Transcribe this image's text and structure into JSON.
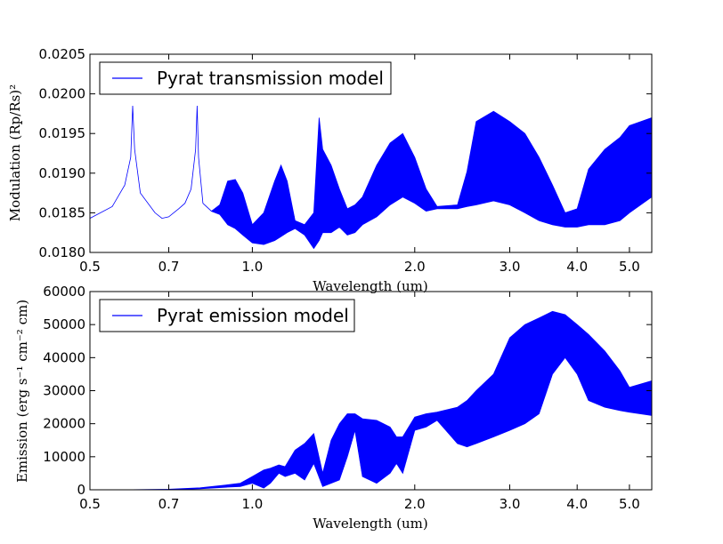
{
  "chart_data": [
    {
      "type": "line",
      "xscale": "log",
      "xlim": [
        0.5,
        5.5
      ],
      "ylim": [
        0.018,
        0.0205
      ],
      "xticks": [
        0.5,
        0.7,
        1.0,
        2.0,
        3.0,
        4.0,
        5.0
      ],
      "xtick_labels": [
        "0.5",
        "0.7",
        "1.0",
        "2.0",
        "3.0",
        "4.0",
        "5.0"
      ],
      "yticks": [
        0.018,
        0.0185,
        0.019,
        0.0195,
        0.02,
        0.0205
      ],
      "ytick_labels": [
        "0.0180",
        "0.0185",
        "0.0190",
        "0.0195",
        "0.0200",
        "0.0205"
      ],
      "xlabel": "Wavelength  (um)",
      "ylabel": "Modulation  (Rp/Rs)²",
      "legend": {
        "location": "upper-left",
        "entries": [
          "Pyrat transmission model"
        ]
      },
      "line_color": "#0000ff",
      "series": [
        {
          "name": "Pyrat transmission model",
          "envelope": {
            "x": [
              0.5,
              0.55,
              0.58,
              0.595,
              0.6,
              0.605,
              0.62,
              0.66,
              0.68,
              0.7,
              0.73,
              0.75,
              0.77,
              0.785,
              0.79,
              0.795,
              0.81,
              0.84,
              0.87,
              0.9,
              0.93,
              0.96,
              1.0,
              1.05,
              1.1,
              1.13,
              1.16,
              1.2,
              1.25,
              1.3,
              1.33,
              1.35,
              1.4,
              1.45,
              1.5,
              1.55,
              1.6,
              1.7,
              1.8,
              1.9,
              2.0,
              2.1,
              2.2,
              2.4,
              2.5,
              2.6,
              2.8,
              3.0,
              3.2,
              3.4,
              3.6,
              3.8,
              4.0,
              4.2,
              4.5,
              4.8,
              5.0,
              5.5
            ],
            "low": [
              0.01843,
              0.01858,
              0.01885,
              0.0192,
              0.01985,
              0.0193,
              0.01875,
              0.0185,
              0.01843,
              0.01845,
              0.01855,
              0.01862,
              0.0188,
              0.0193,
              0.01985,
              0.0192,
              0.01862,
              0.01852,
              0.01848,
              0.01835,
              0.0183,
              0.01822,
              0.01812,
              0.0181,
              0.01815,
              0.0182,
              0.01825,
              0.0183,
              0.01822,
              0.01805,
              0.01815,
              0.01825,
              0.01825,
              0.01832,
              0.01822,
              0.01825,
              0.01835,
              0.01845,
              0.0186,
              0.0187,
              0.01862,
              0.01852,
              0.01855,
              0.01855,
              0.01858,
              0.0186,
              0.01865,
              0.0186,
              0.0185,
              0.0184,
              0.01835,
              0.01832,
              0.01832,
              0.01835,
              0.01835,
              0.0184,
              0.0185,
              0.0187
            ],
            "high": [
              0.01843,
              0.01858,
              0.01885,
              0.0192,
              0.01985,
              0.0193,
              0.01875,
              0.0185,
              0.01843,
              0.01845,
              0.01855,
              0.01862,
              0.0188,
              0.0193,
              0.01985,
              0.0192,
              0.01862,
              0.01852,
              0.0186,
              0.0189,
              0.01892,
              0.01875,
              0.01835,
              0.0185,
              0.0189,
              0.0191,
              0.0189,
              0.0184,
              0.01835,
              0.0185,
              0.0197,
              0.0193,
              0.0191,
              0.0188,
              0.01855,
              0.0186,
              0.0187,
              0.0191,
              0.01938,
              0.0195,
              0.0192,
              0.0188,
              0.01858,
              0.0186,
              0.01902,
              0.01965,
              0.01978,
              0.01965,
              0.0195,
              0.0192,
              0.01885,
              0.0185,
              0.01855,
              0.01905,
              0.0193,
              0.01945,
              0.0196,
              0.0197
            ]
          }
        }
      ]
    },
    {
      "type": "line",
      "xscale": "log",
      "xlim": [
        0.5,
        5.5
      ],
      "ylim": [
        0,
        60000
      ],
      "xticks": [
        0.5,
        0.7,
        1.0,
        2.0,
        3.0,
        4.0,
        5.0
      ],
      "xtick_labels": [
        "0.5",
        "0.7",
        "1.0",
        "2.0",
        "3.0",
        "4.0",
        "5.0"
      ],
      "yticks": [
        0,
        10000,
        20000,
        30000,
        40000,
        50000,
        60000
      ],
      "ytick_labels": [
        "0",
        "10000",
        "20000",
        "30000",
        "40000",
        "50000",
        "60000"
      ],
      "xlabel": "Wavelength  (um)",
      "ylabel": "Emission  (erg s⁻¹ cm⁻² cm)",
      "legend": {
        "location": "upper-left",
        "entries": [
          "Pyrat emission model"
        ]
      },
      "line_color": "#0000ff",
      "series": [
        {
          "name": "Pyrat emission model",
          "envelope": {
            "x": [
              0.5,
              0.6,
              0.7,
              0.8,
              0.9,
              0.95,
              1.0,
              1.05,
              1.08,
              1.12,
              1.15,
              1.2,
              1.25,
              1.3,
              1.35,
              1.4,
              1.45,
              1.5,
              1.55,
              1.6,
              1.7,
              1.8,
              1.85,
              1.9,
              2.0,
              2.1,
              2.2,
              2.4,
              2.5,
              2.6,
              2.8,
              3.0,
              3.2,
              3.4,
              3.6,
              3.8,
              4.0,
              4.2,
              4.5,
              4.8,
              5.0,
              5.5
            ],
            "low": [
              0,
              0,
              50,
              300,
              800,
              1000,
              2000,
              500,
              2000,
              5000,
              4000,
              5000,
              3000,
              8000,
              1000,
              2000,
              3000,
              10000,
              18000,
              4000,
              2000,
              5000,
              8000,
              5000,
              18000,
              19000,
              21000,
              14000,
              13000,
              14000,
              16000,
              18000,
              20000,
              23000,
              35000,
              40000,
              35000,
              27000,
              25000,
              24000,
              23500,
              22500
            ],
            "high": [
              0,
              20,
              150,
              600,
              1500,
              2000,
              4000,
              6000,
              6500,
              7500,
              7000,
              12000,
              14000,
              17000,
              5000,
              15000,
              20000,
              23000,
              23000,
              21500,
              21000,
              19000,
              16000,
              16000,
              22000,
              23000,
              23500,
              25000,
              27000,
              30000,
              35000,
              46000,
              50000,
              52000,
              54000,
              53000,
              50000,
              47000,
              42000,
              36000,
              31000,
              33000
            ]
          }
        }
      ]
    }
  ]
}
